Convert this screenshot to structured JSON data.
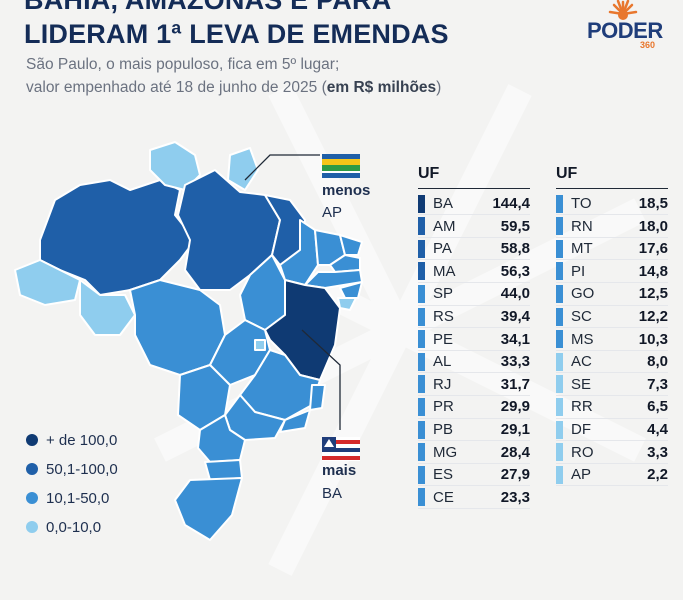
{
  "header": {
    "title_line1": "BAHIA, AMAZONAS E PARÁ",
    "title_line2": "LIDERAM 1ª LEVA DE EMENDAS",
    "subtitle_line1": "São Paulo, o mais populoso, fica em 5º lugar;",
    "subtitle_line2_prefix": "valor empenhado até 18 de junho de 2025 (",
    "subtitle_line2_bold": "em R$ milhões",
    "subtitle_line2_suffix": ")"
  },
  "logo": {
    "name": "PODER",
    "number": "360",
    "icon": "sun-rays-icon"
  },
  "colors": {
    "top": "#0f3a73",
    "high": "#1f5fa8",
    "mid": "#3a8fd4",
    "low": "#8fcdee",
    "accent_logo": "#e8772e"
  },
  "callouts": {
    "least": {
      "word": "menos",
      "uf": "AP",
      "icon": "amapa-flag-icon"
    },
    "most": {
      "word": "mais",
      "uf": "BA",
      "icon": "bahia-flag-icon"
    }
  },
  "legend": [
    {
      "label": "+ de 100,0",
      "color": "#0f3a73"
    },
    {
      "label": "50,1-100,0",
      "color": "#1f5fa8"
    },
    {
      "label": "10,1-50,0",
      "color": "#3a8fd4"
    },
    {
      "label": "0,0-10,0",
      "color": "#8fcdee"
    }
  ],
  "table": {
    "header": "UF",
    "left": [
      {
        "uf": "BA",
        "value": "144,4",
        "color": "#0f3a73"
      },
      {
        "uf": "AM",
        "value": "59,5",
        "color": "#1f5fa8"
      },
      {
        "uf": "PA",
        "value": "58,8",
        "color": "#1f5fa8"
      },
      {
        "uf": "MA",
        "value": "56,3",
        "color": "#1f5fa8"
      },
      {
        "uf": "SP",
        "value": "44,0",
        "color": "#3a8fd4"
      },
      {
        "uf": "RS",
        "value": "39,4",
        "color": "#3a8fd4"
      },
      {
        "uf": "PE",
        "value": "34,1",
        "color": "#3a8fd4"
      },
      {
        "uf": "AL",
        "value": "33,3",
        "color": "#3a8fd4"
      },
      {
        "uf": "RJ",
        "value": "31,7",
        "color": "#3a8fd4"
      },
      {
        "uf": "PR",
        "value": "29,9",
        "color": "#3a8fd4"
      },
      {
        "uf": "PB",
        "value": "29,1",
        "color": "#3a8fd4"
      },
      {
        "uf": "MG",
        "value": "28,4",
        "color": "#3a8fd4"
      },
      {
        "uf": "ES",
        "value": "27,9",
        "color": "#3a8fd4"
      },
      {
        "uf": "CE",
        "value": "23,3",
        "color": "#3a8fd4"
      }
    ],
    "right": [
      {
        "uf": "TO",
        "value": "18,5",
        "color": "#3a8fd4"
      },
      {
        "uf": "RN",
        "value": "18,0",
        "color": "#3a8fd4"
      },
      {
        "uf": "MT",
        "value": "17,6",
        "color": "#3a8fd4"
      },
      {
        "uf": "PI",
        "value": "14,8",
        "color": "#3a8fd4"
      },
      {
        "uf": "GO",
        "value": "12,5",
        "color": "#3a8fd4"
      },
      {
        "uf": "SC",
        "value": "12,2",
        "color": "#3a8fd4"
      },
      {
        "uf": "MS",
        "value": "10,3",
        "color": "#3a8fd4"
      },
      {
        "uf": "AC",
        "value": "8,0",
        "color": "#8fcdee"
      },
      {
        "uf": "SE",
        "value": "7,3",
        "color": "#8fcdee"
      },
      {
        "uf": "RR",
        "value": "6,5",
        "color": "#8fcdee"
      },
      {
        "uf": "DF",
        "value": "4,4",
        "color": "#8fcdee"
      },
      {
        "uf": "RO",
        "value": "3,3",
        "color": "#8fcdee"
      },
      {
        "uf": "AP",
        "value": "2,2",
        "color": "#8fcdee"
      }
    ]
  }
}
